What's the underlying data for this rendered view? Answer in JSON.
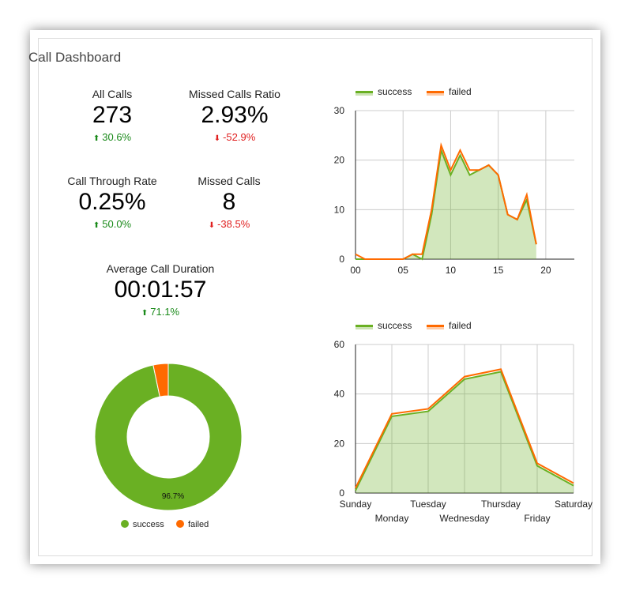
{
  "dashboard": {
    "title": "Call Dashboard"
  },
  "metrics": [
    {
      "label": "All Calls",
      "value": "273",
      "change": "30.6%",
      "direction": "up"
    },
    {
      "label": "Missed Calls Ratio",
      "value": "2.93%",
      "change": "-52.9%",
      "direction": "down"
    },
    {
      "label": "Call Through Rate",
      "value": "0.25%",
      "change": "50.0%",
      "direction": "up"
    },
    {
      "label": "Missed Calls",
      "value": "8",
      "change": "-38.5%",
      "direction": "down"
    },
    {
      "label": "Average Call Duration",
      "value": "00:01:57",
      "change": "71.1%",
      "direction": "up"
    }
  ],
  "colors": {
    "success": "#6ab023",
    "failed": "#ff6a00",
    "up": "#1a8a1a",
    "down": "#e02020"
  },
  "chart_data": [
    {
      "type": "area",
      "name": "hourly",
      "x": [
        0,
        1,
        2,
        3,
        4,
        5,
        6,
        7,
        8,
        9,
        10,
        11,
        12,
        13,
        14,
        15,
        16,
        17,
        18,
        19
      ],
      "series": [
        {
          "name": "success",
          "values": [
            0,
            0,
            0,
            0,
            0,
            0,
            1,
            0,
            9,
            22,
            17,
            21,
            17,
            18,
            19,
            17,
            9,
            8,
            12,
            3
          ]
        },
        {
          "name": "failed",
          "values": [
            1,
            0,
            0,
            0,
            0,
            0,
            1,
            1,
            10,
            23,
            18,
            22,
            18,
            18,
            19,
            17,
            9,
            8,
            13,
            3
          ]
        }
      ],
      "xlim": [
        0,
        23
      ],
      "ylim": [
        0,
        30
      ],
      "xticks": [
        "00",
        "05",
        "10",
        "15",
        "20"
      ],
      "yticks": [
        "0",
        "10",
        "20",
        "30"
      ],
      "legend": "top"
    },
    {
      "type": "area",
      "name": "weekly",
      "categories": [
        "Sunday",
        "Monday",
        "Tuesday",
        "Wednesday",
        "Thursday",
        "Friday",
        "Saturday"
      ],
      "series": [
        {
          "name": "success",
          "values": [
            1,
            31,
            33,
            46,
            49,
            11,
            3
          ]
        },
        {
          "name": "failed",
          "values": [
            2,
            32,
            34,
            47,
            50,
            12,
            4
          ]
        }
      ],
      "ylim": [
        0,
        60
      ],
      "yticks": [
        "0",
        "20",
        "40",
        "60"
      ],
      "legend": "top"
    },
    {
      "type": "pie",
      "name": "success-vs-failed",
      "series": [
        {
          "name": "success",
          "value": 96.7
        },
        {
          "name": "failed",
          "value": 3.3
        }
      ],
      "slice_label": "96.7%",
      "legend": "bottom"
    }
  ]
}
